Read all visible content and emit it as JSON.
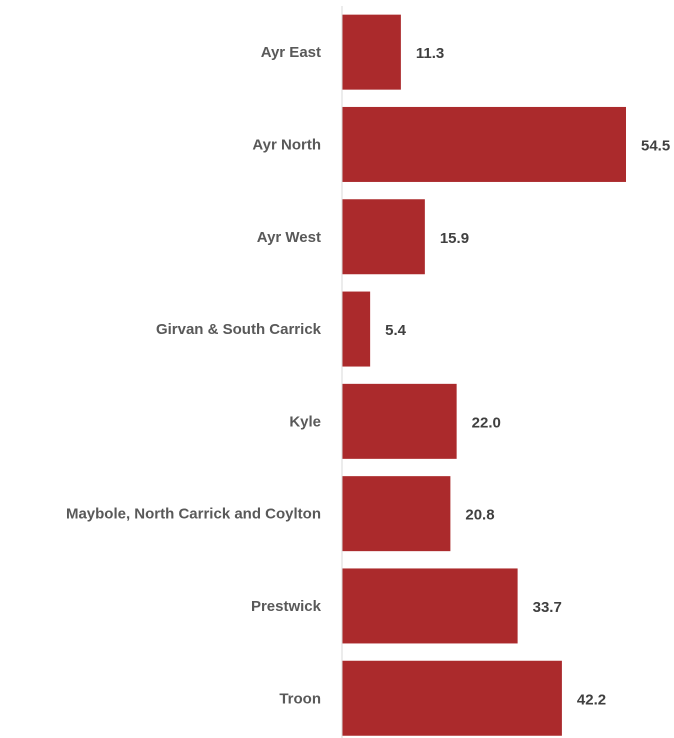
{
  "chart_data": {
    "type": "bar",
    "orientation": "horizontal",
    "title": "",
    "xlabel": "",
    "ylabel": "",
    "categories": [
      "Ayr East",
      "Ayr North",
      "Ayr West",
      "Girvan & South Carrick",
      "Kyle",
      "Maybole, North Carrick and Coylton",
      "Prestwick",
      "Troon"
    ],
    "values": [
      11.3,
      54.5,
      15.9,
      5.4,
      22.0,
      20.8,
      33.7,
      42.2
    ],
    "value_labels": [
      "11.3",
      "54.5",
      "15.9",
      "5.4",
      "22.0",
      "20.8",
      "33.7",
      "42.2"
    ],
    "xlim": [
      0,
      60
    ],
    "grid": false,
    "legend": "none",
    "bar_color": "#ab2a2c",
    "axis_color": "#d9d9d9"
  }
}
